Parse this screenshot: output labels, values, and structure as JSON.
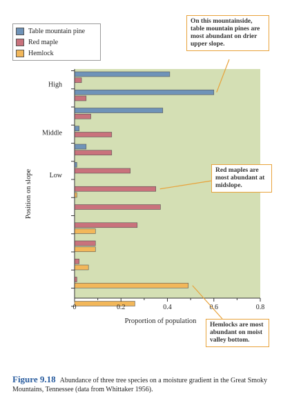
{
  "chart_data": {
    "type": "bar",
    "orientation": "horizontal",
    "xlabel": "Proportion of population",
    "ylabel": "Position on slope",
    "xlim": [
      0,
      0.8
    ],
    "xticks": [
      "0",
      "0.2",
      "0.4",
      "0.6",
      "0.8"
    ],
    "ytick_labels": [
      {
        "label": "High",
        "row": 2
      },
      {
        "label": "Middle",
        "row": 10
      },
      {
        "label": "Low",
        "row": 17
      }
    ],
    "series": [
      {
        "name": "Table mountain pine",
        "color": "#6f93b8"
      },
      {
        "name": "Red maple",
        "color": "#c9727c"
      },
      {
        "name": "Hemlock",
        "color": "#f2b75a"
      }
    ],
    "stations": [
      {
        "Table mountain pine": 0.41,
        "Red maple": 0.03,
        "Hemlock": 0
      },
      {
        "Table mountain pine": 0.6,
        "Red maple": 0.05,
        "Hemlock": 0
      },
      {
        "Table mountain pine": 0.38,
        "Red maple": 0.07,
        "Hemlock": 0
      },
      {
        "Table mountain pine": 0.02,
        "Red maple": 0.16,
        "Hemlock": 0
      },
      {
        "Table mountain pine": 0.05,
        "Red maple": 0.16,
        "Hemlock": 0
      },
      {
        "Table mountain pine": 0.01,
        "Red maple": 0.24,
        "Hemlock": 0
      },
      {
        "Table mountain pine": 0,
        "Red maple": 0.35,
        "Hemlock": 0.01
      },
      {
        "Table mountain pine": 0,
        "Red maple": 0.37,
        "Hemlock": 0
      },
      {
        "Table mountain pine": 0,
        "Red maple": 0.27,
        "Hemlock": 0.09
      },
      {
        "Table mountain pine": 0,
        "Red maple": 0.09,
        "Hemlock": 0.09
      },
      {
        "Table mountain pine": 0,
        "Red maple": 0.02,
        "Hemlock": 0.06
      },
      {
        "Table mountain pine": 0,
        "Red maple": 0.01,
        "Hemlock": 0.49
      },
      {
        "Table mountain pine": 0,
        "Red maple": 0,
        "Hemlock": 0.26
      }
    ],
    "grid": false,
    "legend": "top-left",
    "annotations": [
      {
        "id": "pine",
        "text": "On this mountainside, table mountain pines are most abundant on drier upper slope."
      },
      {
        "id": "maple",
        "text": "Red maples are most abundant at midslope."
      },
      {
        "id": "hemlock",
        "text": "Hemlocks are most abundant on moist valley bottom."
      }
    ]
  },
  "legend": {
    "items": [
      {
        "label": "Table mountain pine",
        "color": "#6f93b8"
      },
      {
        "label": "Red maple",
        "color": "#c9727c"
      },
      {
        "label": "Hemlock",
        "color": "#f2b75a"
      }
    ]
  },
  "caption": {
    "figure_label": "Figure 9.18",
    "text": "Abundance of three tree species on a moisture gradient in the Great Smoky Mountains, Tennessee (data from Whittaker 1956)."
  },
  "colors": {
    "plot_background": "#d4dfb4",
    "callout_border": "#e8a23a",
    "caption_blue": "#2a5d9f"
  }
}
